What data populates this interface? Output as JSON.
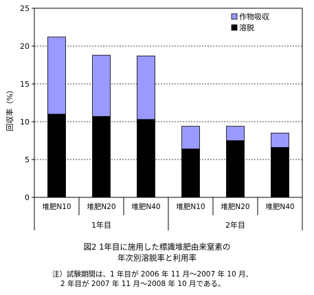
{
  "chart_data": {
    "type": "bar",
    "stacked": true,
    "ylabel": "回収率（%）",
    "ylim": [
      0,
      25
    ],
    "yticks": [
      0,
      5,
      10,
      15,
      20,
      25
    ],
    "grid": true,
    "legend_position": "top-right",
    "categories": [
      "堆肥N10",
      "堆肥N20",
      "堆肥N40",
      "堆肥N10",
      "堆肥N20",
      "堆肥N40"
    ],
    "groups": [
      {
        "label": "1年目",
        "count": 3
      },
      {
        "label": "2年目",
        "count": 3
      }
    ],
    "series": [
      {
        "name": "溶脱",
        "color": "#000000",
        "values": [
          11.0,
          10.7,
          10.3,
          6.4,
          7.5,
          6.6
        ]
      },
      {
        "name": "作物吸収",
        "color": "#9999ff",
        "values": [
          10.2,
          8.1,
          8.4,
          3.0,
          1.9,
          1.9
        ]
      }
    ]
  },
  "caption": {
    "line1": "図2  1年目に施用した標識堆肥由来窒素の",
    "line2": "年次別溶脱率と利用率"
  },
  "note": {
    "line1": "注）試験期間は、1 年目が 2006 年 11 月～2007 年 10 月、",
    "line2": "2 年目が 2007 年 11 月～2008 年 10 月である。"
  }
}
